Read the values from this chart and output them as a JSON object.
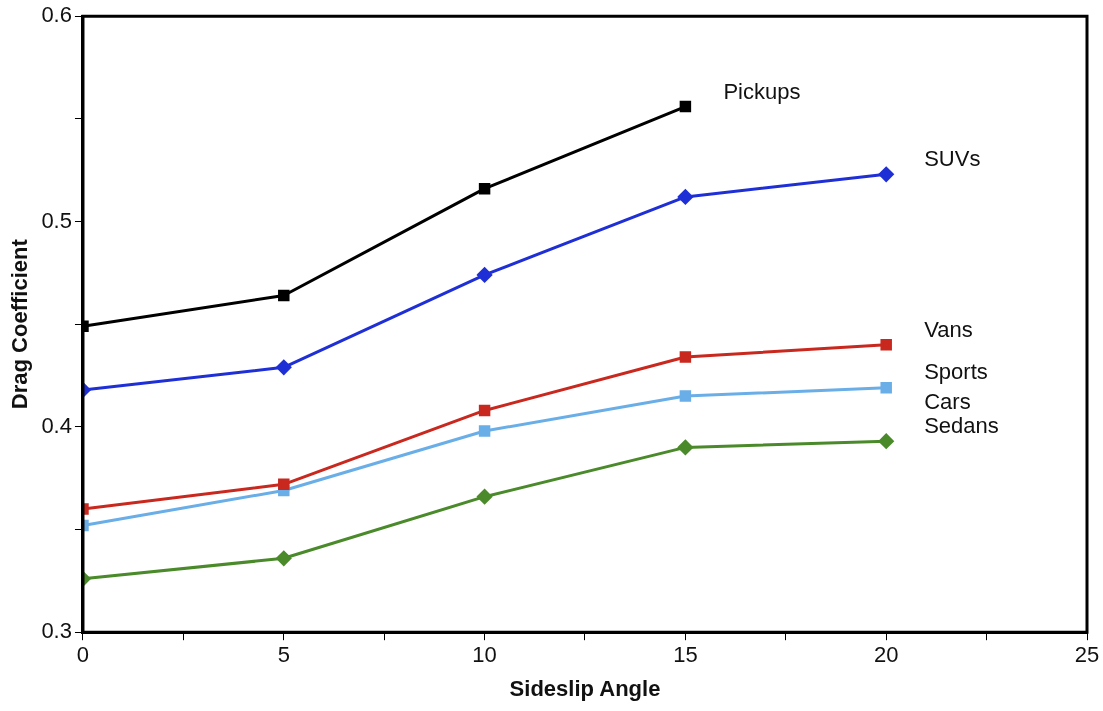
{
  "chart_data": {
    "type": "line",
    "xlabel": "Sideslip Angle",
    "ylabel": "Drag Coefficient",
    "x": [
      0,
      5,
      10,
      15,
      20
    ],
    "xlim": [
      0,
      25
    ],
    "xticks": [
      0,
      {
        "value": 2.5,
        "label": null
      },
      5,
      {
        "value": 7.5,
        "label": null
      },
      10,
      {
        "value": 12.5,
        "label": null
      },
      15,
      {
        "value": 17.5,
        "label": null
      },
      20,
      {
        "value": 22.5,
        "label": null
      },
      25
    ],
    "ylim": [
      0.3,
      0.6
    ],
    "yticks": [
      {
        "value": 0.3,
        "label": "0.3"
      },
      {
        "value": 0.35,
        "label": null
      },
      {
        "value": 0.4,
        "label": "0.4"
      },
      {
        "value": 0.45,
        "label": null
      },
      {
        "value": 0.5,
        "label": "0.5"
      },
      {
        "value": 0.55,
        "label": null
      },
      {
        "value": 0.6,
        "label": "0.6"
      }
    ],
    "grid": false,
    "legend": false,
    "line_style": "solid",
    "series": [
      {
        "name": "Pickups",
        "color": "#000000",
        "marker": "square",
        "values": [
          0.449,
          0.464,
          0.516,
          0.556,
          null
        ]
      },
      {
        "name": "SUVs",
        "color": "#1f2fd6",
        "marker": "diamond",
        "values": [
          0.418,
          0.429,
          0.474,
          0.512,
          0.523
        ]
      },
      {
        "name": "Vans",
        "color": "#c8281e",
        "marker": "square",
        "values": [
          0.36,
          0.372,
          0.408,
          0.434,
          0.44
        ]
      },
      {
        "name": "Sports Cars",
        "color": "#6aaee8",
        "marker": "square",
        "values": [
          0.352,
          0.369,
          0.398,
          0.415,
          0.419
        ]
      },
      {
        "name": "Sedans",
        "color": "#4a8a2a",
        "marker": "diamond",
        "values": [
          0.326,
          0.336,
          0.366,
          0.39,
          0.393
        ]
      }
    ]
  }
}
